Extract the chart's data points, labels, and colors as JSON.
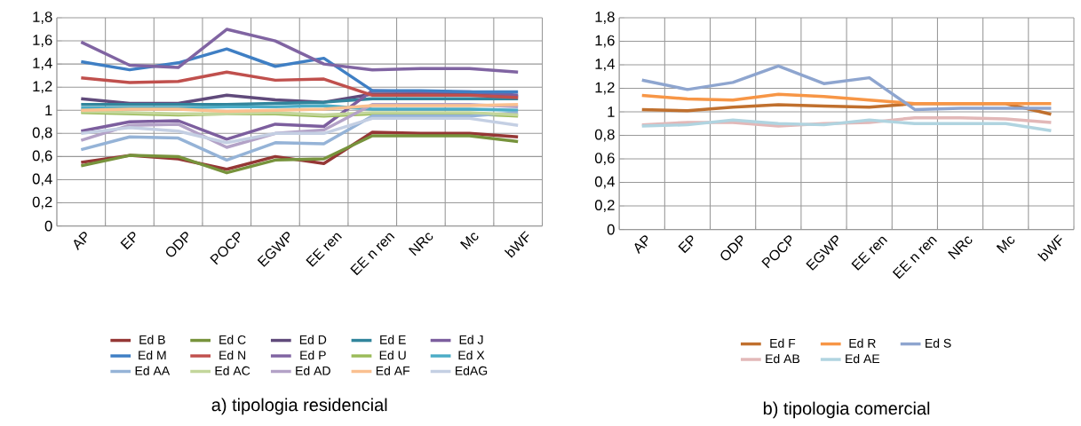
{
  "chart_data": [
    {
      "type": "line",
      "title": "a) tipologia residencial",
      "categories": [
        "AP",
        "EP",
        "ODP",
        "POCP",
        "EGWP",
        "EE ren",
        "EE n ren",
        "NRc",
        "Mc",
        "bWF"
      ],
      "ylim": [
        0,
        1.8
      ],
      "yticks": [
        0,
        {
          "value": 0.2,
          "label": "0,2"
        },
        {
          "value": 0.4,
          "label": "0,4"
        },
        {
          "value": 0.6,
          "label": "0,6"
        },
        {
          "value": 0.8,
          "label": "0,8"
        },
        1,
        {
          "value": 1.2,
          "label": "1,2"
        },
        {
          "value": 1.4,
          "label": "1,4"
        },
        {
          "value": 1.6,
          "label": "1,6"
        },
        {
          "value": 1.8,
          "label": "1,8"
        }
      ],
      "grid": true,
      "legend": "bottom",
      "series": [
        {
          "name": "Ed B",
          "color": "#953735",
          "values": [
            0.55,
            0.61,
            0.58,
            0.49,
            0.6,
            0.54,
            0.81,
            0.8,
            0.8,
            0.77
          ]
        },
        {
          "name": "Ed C",
          "color": "#77933c",
          "values": [
            0.52,
            0.61,
            0.6,
            0.46,
            0.57,
            0.58,
            0.78,
            0.78,
            0.78,
            0.73
          ]
        },
        {
          "name": "Ed D",
          "color": "#604a7b",
          "values": [
            1.1,
            1.06,
            1.06,
            1.13,
            1.09,
            1.07,
            1.14,
            1.14,
            1.14,
            1.12
          ]
        },
        {
          "name": "Ed E",
          "color": "#31859c",
          "values": [
            1.05,
            1.05,
            1.05,
            1.05,
            1.06,
            1.07,
            1.1,
            1.1,
            1.1,
            1.1
          ]
        },
        {
          "name": "Ed J",
          "color": "#7c5e9e",
          "values": [
            0.82,
            0.9,
            0.91,
            0.75,
            0.88,
            0.86,
            1.17,
            1.16,
            1.16,
            1.13
          ]
        },
        {
          "name": "Ed M",
          "color": "#3f7fc4",
          "values": [
            1.42,
            1.35,
            1.41,
            1.53,
            1.38,
            1.45,
            1.17,
            1.17,
            1.16,
            1.16
          ]
        },
        {
          "name": "Ed N",
          "color": "#c0504d",
          "values": [
            1.28,
            1.24,
            1.25,
            1.33,
            1.26,
            1.27,
            1.13,
            1.13,
            1.13,
            1.11
          ]
        },
        {
          "name": "Ed P",
          "color": "#8064a2",
          "values": [
            1.59,
            1.39,
            1.37,
            1.7,
            1.6,
            1.4,
            1.35,
            1.36,
            1.36,
            1.33
          ]
        },
        {
          "name": "Ed U",
          "color": "#9bbb59",
          "values": [
            0.98,
            0.97,
            0.96,
            0.97,
            0.97,
            0.95,
            0.97,
            0.97,
            0.97,
            0.95
          ]
        },
        {
          "name": "Ed X",
          "color": "#4bacc6",
          "values": [
            1.02,
            1.02,
            1.02,
            1.03,
            1.03,
            1.04,
            1.01,
            1.01,
            1.01,
            1.0
          ]
        },
        {
          "name": "Ed AA",
          "color": "#95b3d7",
          "values": [
            0.66,
            0.77,
            0.76,
            0.57,
            0.72,
            0.71,
            0.95,
            0.95,
            0.95,
            0.98
          ]
        },
        {
          "name": "Ed AC",
          "color": "#c3d69b",
          "values": [
            0.99,
            0.98,
            0.97,
            0.97,
            0.98,
            0.96,
            0.98,
            0.98,
            0.98,
            0.96
          ]
        },
        {
          "name": "Ed AD",
          "color": "#b3a2c7",
          "values": [
            0.74,
            0.87,
            0.88,
            0.68,
            0.8,
            0.83,
            1.05,
            1.05,
            1.05,
            1.03
          ]
        },
        {
          "name": "Ed AF",
          "color": "#fac090",
          "values": [
            1.0,
            1.01,
            1.01,
            0.99,
            1.0,
            1.01,
            1.04,
            1.04,
            1.04,
            1.05
          ]
        },
        {
          "name": "EdAG",
          "color": "#c4cfe3",
          "values": [
            0.8,
            0.85,
            0.82,
            0.72,
            0.8,
            0.8,
            0.93,
            0.93,
            0.93,
            0.87
          ]
        }
      ]
    },
    {
      "type": "line",
      "title": "b) tipologia comercial",
      "categories": [
        "AP",
        "EP",
        "ODP",
        "POCP",
        "EGWP",
        "EE ren",
        "EE n ren",
        "NRc",
        "Mc",
        "bWF"
      ],
      "ylim": [
        0,
        1.8
      ],
      "yticks": [
        0,
        {
          "value": 0.2,
          "label": "0,2"
        },
        {
          "value": 0.4,
          "label": "0,4"
        },
        {
          "value": 0.6,
          "label": "0,6"
        },
        {
          "value": 0.8,
          "label": "0,8"
        },
        1,
        {
          "value": 1.2,
          "label": "1,2"
        },
        {
          "value": 1.4,
          "label": "1,4"
        },
        {
          "value": 1.6,
          "label": "1,6"
        },
        {
          "value": 1.8,
          "label": "1,8"
        }
      ],
      "grid": true,
      "legend": "bottom",
      "series": [
        {
          "name": "Ed F",
          "color": "#c0702e",
          "values": [
            1.02,
            1.01,
            1.04,
            1.06,
            1.05,
            1.04,
            1.07,
            1.07,
            1.07,
            0.98
          ]
        },
        {
          "name": "Ed R",
          "color": "#f79646",
          "values": [
            1.14,
            1.11,
            1.1,
            1.15,
            1.13,
            1.1,
            1.07,
            1.07,
            1.07,
            1.07
          ]
        },
        {
          "name": "Ed S",
          "color": "#8ea5cf",
          "values": [
            1.27,
            1.19,
            1.25,
            1.39,
            1.24,
            1.29,
            1.02,
            1.03,
            1.03,
            1.03
          ]
        },
        {
          "name": "Ed AB",
          "color": "#e2b8b8",
          "values": [
            0.89,
            0.91,
            0.91,
            0.88,
            0.9,
            0.91,
            0.95,
            0.95,
            0.94,
            0.91
          ]
        },
        {
          "name": "Ed AE",
          "color": "#b0d4e0",
          "values": [
            0.88,
            0.89,
            0.93,
            0.9,
            0.89,
            0.93,
            0.9,
            0.9,
            0.9,
            0.84
          ]
        }
      ]
    }
  ]
}
